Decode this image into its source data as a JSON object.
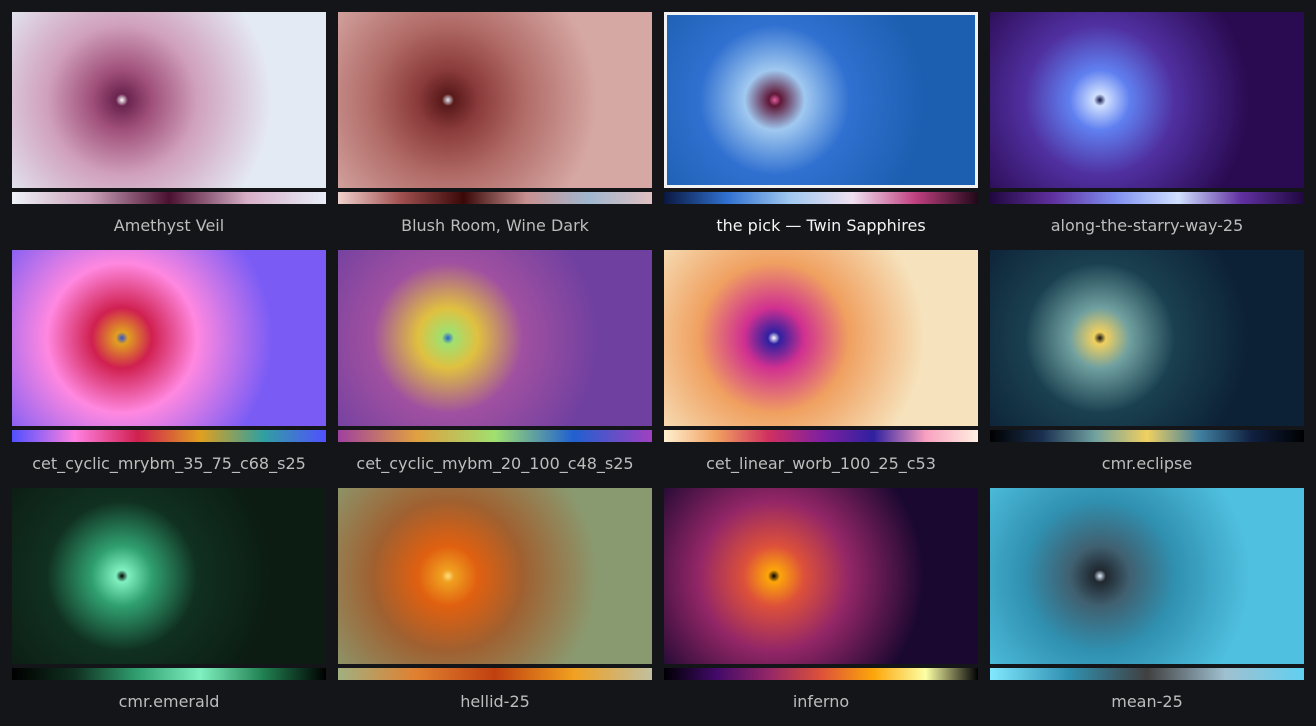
{
  "tiles": [
    {
      "label": "Amethyst Veil"
    },
    {
      "label": "Blush Room, Wine Dark"
    },
    {
      "label": "the pick — Twin Sapphires"
    },
    {
      "label": "along-the-starry-way-25"
    },
    {
      "label": "cet_cyclic_mrybm_35_75_c68_s25"
    },
    {
      "label": "cet_cyclic_mybm_20_100_c48_s25"
    },
    {
      "label": "cet_linear_worb_100_25_c53"
    },
    {
      "label": "cmr.eclipse"
    },
    {
      "label": "cmr.emerald"
    },
    {
      "label": "hellid-25"
    },
    {
      "label": "inferno"
    },
    {
      "label": "mean-25"
    }
  ]
}
